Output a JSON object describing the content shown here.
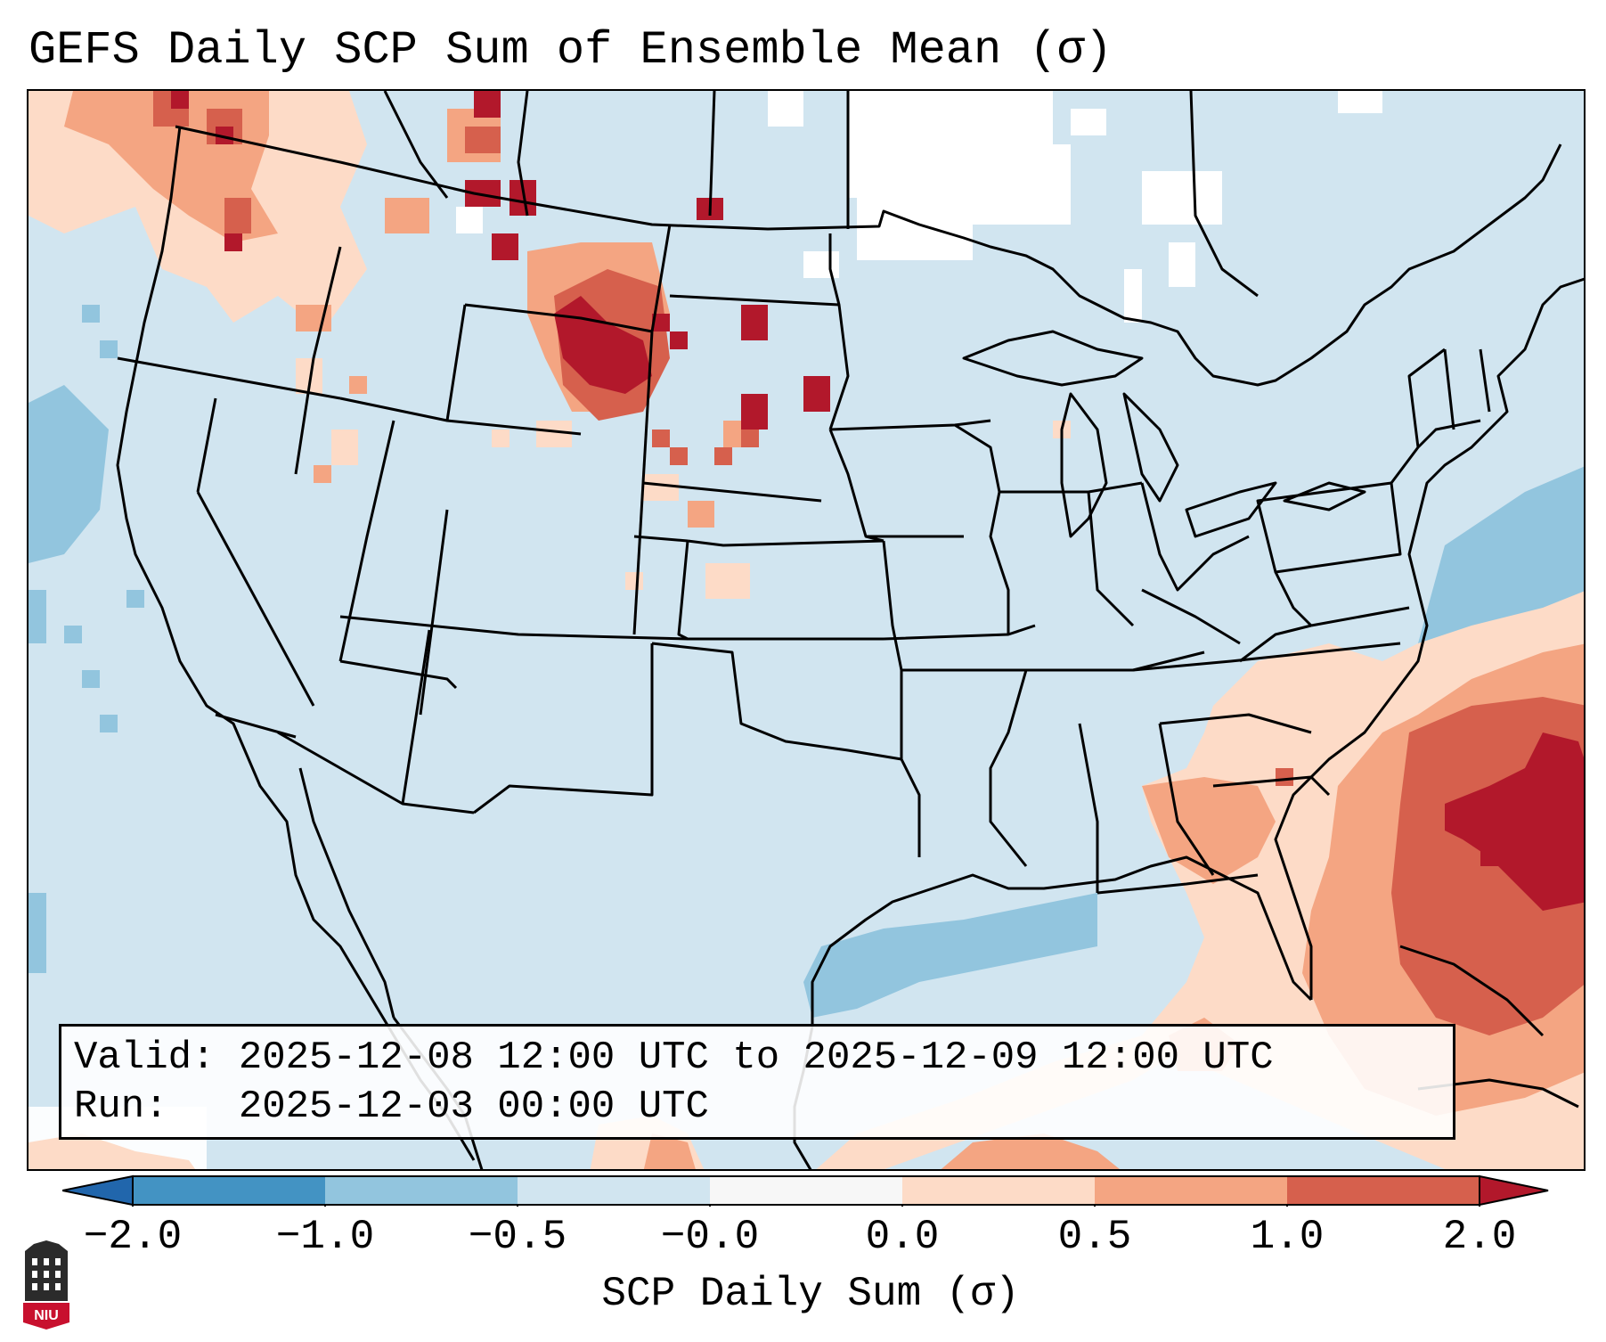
{
  "title": "GEFS Daily SCP Sum of Ensemble Mean (σ)",
  "info": {
    "valid_label": "Valid:",
    "valid_value": "2025-12-08 12:00 UTC to 2025-12-09 12:00 UTC",
    "run_label": "Run:",
    "run_value": "2025-12-03 00:00 UTC"
  },
  "colorbar": {
    "label": "SCP Daily Sum (σ)",
    "ticks": [
      "−2.0",
      "−1.0",
      "−0.5",
      "−0.0",
      "0.0",
      "0.5",
      "1.0",
      "2.0"
    ],
    "colors": {
      "neg_extend": "#2166ac",
      "neg_2_1": "#4393c3",
      "neg_1_05": "#92c5de",
      "neg_05_0": "#d1e5f0",
      "zero": "#f7f7f7",
      "pos_0_05": "#fddbc7",
      "pos_05_1": "#f4a582",
      "pos_1_2": "#d6604d",
      "pos_extend": "#b2182b"
    }
  },
  "map": {
    "background_color": "#d1e5f0",
    "regions": [
      {
        "name": "pacific-northwest-anomaly",
        "sign": "positive"
      },
      {
        "name": "northern-plains-anomaly",
        "sign": "positive"
      },
      {
        "name": "southeast-atlantic-anomaly",
        "sign": "positive"
      },
      {
        "name": "gulf-of-mexico-anomaly",
        "sign": "negative"
      },
      {
        "name": "western-atlantic-anomaly",
        "sign": "negative"
      }
    ]
  },
  "logo": {
    "text": "NIU"
  }
}
